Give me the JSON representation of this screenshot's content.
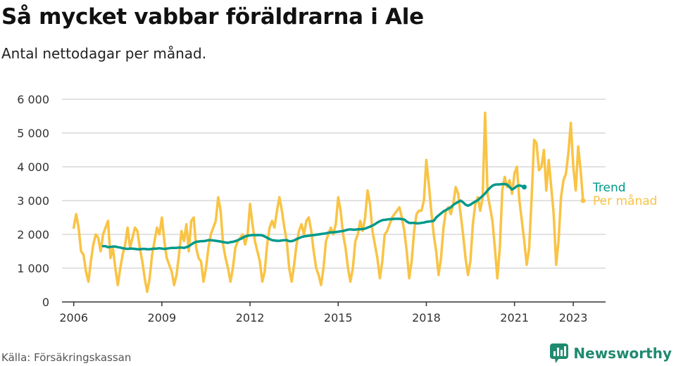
{
  "title": "Så mycket vabbar föräldrarna i Ale",
  "subtitle": "Antal nettodagar per månad.",
  "source": "Källa: Försäkringskassan",
  "brand": "Newsworthy",
  "colors": {
    "trend": "#00998a",
    "monthly": "#f9c344",
    "grid": "#d9d9d9",
    "axis": "#333333",
    "brand": "#1f8a70"
  },
  "icons": {
    "brand_logo": "bar-chart-speech-bubble-icon"
  },
  "chart_data": {
    "type": "line",
    "title": "Så mycket vabbar föräldrarna i Ale",
    "subtitle": "Antal nettodagar per månad.",
    "xlabel": "",
    "ylabel": "",
    "x_ticks": [
      2006,
      2009,
      2012,
      2015,
      2018,
      2021,
      2023
    ],
    "y_ticks": [
      0,
      1000,
      2000,
      3000,
      4000,
      5000,
      6000
    ],
    "y_tick_labels": [
      "0",
      "1 000",
      "2 000",
      "3 000",
      "4 000",
      "5 000",
      "6 000"
    ],
    "ylim": [
      0,
      6000
    ],
    "xlim": [
      2005.6,
      2024.1
    ],
    "grid": "horizontal",
    "legend": "direct labels at end of lines",
    "series": [
      {
        "name": "Per månad",
        "start_year": 2006,
        "start_month": 1,
        "values": [
          2200,
          2600,
          2200,
          1500,
          1400,
          900,
          600,
          1200,
          1700,
          2000,
          1900,
          1500,
          2000,
          2200,
          2400,
          1300,
          1600,
          1000,
          500,
          1000,
          1400,
          1700,
          2200,
          1600,
          1900,
          2200,
          2100,
          1600,
          1200,
          700,
          300,
          700,
          1400,
          1800,
          2200,
          2000,
          2500,
          1800,
          1300,
          1100,
          900,
          500,
          800,
          1400,
          2100,
          1800,
          2300,
          1500,
          2400,
          2500,
          1600,
          1300,
          1200,
          600,
          1000,
          1600,
          2000,
          2200,
          2400,
          3100,
          2700,
          1700,
          1300,
          1000,
          600,
          1000,
          1600,
          1800,
          1900,
          2000,
          1700,
          2000,
          2900,
          2300,
          1800,
          1500,
          1200,
          600,
          900,
          1700,
          2200,
          2400,
          2200,
          2700,
          3100,
          2700,
          2200,
          1800,
          1000,
          600,
          1100,
          1700,
          2100,
          2300,
          2000,
          2400,
          2500,
          2100,
          1500,
          1000,
          800,
          500,
          1000,
          1800,
          2000,
          2200,
          2000,
          2300,
          3100,
          2700,
          2000,
          1600,
          1000,
          600,
          1000,
          1800,
          2000,
          2400,
          2100,
          2500,
          3300,
          2900,
          2100,
          1700,
          1300,
          700,
          1200,
          2000,
          2100,
          2300,
          2500,
          2600,
          2700,
          2800,
          2500,
          2100,
          1500,
          700,
          1200,
          2100,
          2600,
          2700,
          2700,
          3000,
          4200,
          3500,
          2700,
          2000,
          1500,
          800,
          1300,
          2200,
          2700,
          2800,
          2600,
          2900,
          3400,
          3200,
          2600,
          2000,
          1300,
          800,
          1200,
          2300,
          2900,
          3100,
          2700,
          3100,
          5600,
          3200,
          2800,
          2400,
          1600,
          700,
          1600,
          3300,
          3700,
          3400,
          3600,
          3200,
          3800,
          4000,
          3000,
          2400,
          1800,
          1100,
          1600,
          3100,
          4800,
          4700,
          3900,
          4000,
          4500,
          3300,
          4200,
          3400,
          2600,
          1100,
          1800,
          3100,
          3600,
          3800,
          4400,
          5300,
          4000,
          3300,
          4600,
          3900,
          3000
        ]
      },
      {
        "name": "Trend",
        "start_year": 2007,
        "start_month": 1,
        "values": [
          1650,
          1650,
          1620,
          1630,
          1640,
          1640,
          1620,
          1610,
          1590,
          1580,
          1570,
          1580,
          1580,
          1570,
          1560,
          1560,
          1570,
          1570,
          1560,
          1560,
          1570,
          1580,
          1580,
          1590,
          1580,
          1570,
          1580,
          1590,
          1600,
          1600,
          1600,
          1610,
          1610,
          1600,
          1620,
          1650,
          1700,
          1750,
          1780,
          1790,
          1800,
          1800,
          1810,
          1830,
          1830,
          1820,
          1810,
          1800,
          1790,
          1770,
          1760,
          1750,
          1770,
          1780,
          1800,
          1830,
          1860,
          1900,
          1940,
          1960,
          1970,
          1980,
          1980,
          1980,
          1980,
          1970,
          1940,
          1900,
          1860,
          1830,
          1820,
          1810,
          1810,
          1820,
          1830,
          1830,
          1800,
          1800,
          1820,
          1860,
          1890,
          1920,
          1940,
          1950,
          1960,
          1970,
          1980,
          1990,
          2000,
          2010,
          2020,
          2030,
          2050,
          2060,
          2060,
          2070,
          2080,
          2090,
          2100,
          2120,
          2140,
          2150,
          2140,
          2140,
          2150,
          2150,
          2160,
          2170,
          2200,
          2230,
          2260,
          2300,
          2350,
          2390,
          2420,
          2430,
          2440,
          2450,
          2450,
          2460,
          2460,
          2460,
          2450,
          2440,
          2380,
          2340,
          2340,
          2340,
          2330,
          2330,
          2340,
          2350,
          2370,
          2380,
          2390,
          2400,
          2500,
          2560,
          2620,
          2680,
          2720,
          2760,
          2800,
          2870,
          2920,
          2960,
          3000,
          2950,
          2880,
          2850,
          2880,
          2930,
          2970,
          3010,
          3080,
          3140,
          3210,
          3300,
          3380,
          3440,
          3470,
          3480,
          3480,
          3490,
          3490,
          3470,
          3400,
          3330,
          3370,
          3430,
          3450,
          3430,
          3400
        ]
      }
    ]
  }
}
